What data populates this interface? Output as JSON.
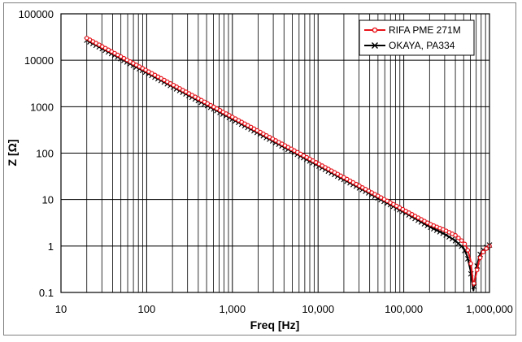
{
  "chart_data": {
    "type": "line",
    "xscale": "log",
    "yscale": "log",
    "xlabel": "Freq [Hz]",
    "ylabel": "Z [Ω]",
    "xlim": [
      10,
      1000000
    ],
    "ylim": [
      0.1,
      100000
    ],
    "grid": true,
    "legend_position": "top-right",
    "x_tick_labels": [
      "10",
      "100",
      "1,000",
      "10,000",
      "100,000",
      "1,000,000"
    ],
    "y_tick_labels": [
      "0.1",
      "1",
      "10",
      "100",
      "1000",
      "10000",
      "100000"
    ],
    "x": [
      20,
      50,
      100,
      200,
      500,
      1000,
      2000,
      5000,
      10000,
      20000,
      50000,
      100000,
      200000,
      300000,
      400000,
      500000,
      550000,
      600000,
      620000,
      650000,
      700000,
      750000,
      800000,
      900000,
      1000000
    ],
    "series": [
      {
        "name": "RIFA PME 271M",
        "color": "#e8141b",
        "marker": "circle",
        "values": [
          30000,
          12000,
          6000,
          3000,
          1200,
          600,
          300,
          120,
          60,
          30,
          12,
          6,
          3,
          2.2,
          1.7,
          1.2,
          0.9,
          0.5,
          0.3,
          0.14,
          0.25,
          0.45,
          0.65,
          0.85,
          1.0
        ]
      },
      {
        "name": "OKAYA, PA334",
        "color": "#000000",
        "marker": "x",
        "values": [
          27000,
          10800,
          5400,
          2700,
          1080,
          540,
          270,
          108,
          54,
          27,
          10.8,
          5.4,
          2.6,
          1.8,
          1.3,
          0.9,
          0.6,
          0.3,
          0.18,
          0.11,
          0.3,
          0.55,
          0.75,
          0.9,
          1.05
        ]
      }
    ]
  }
}
